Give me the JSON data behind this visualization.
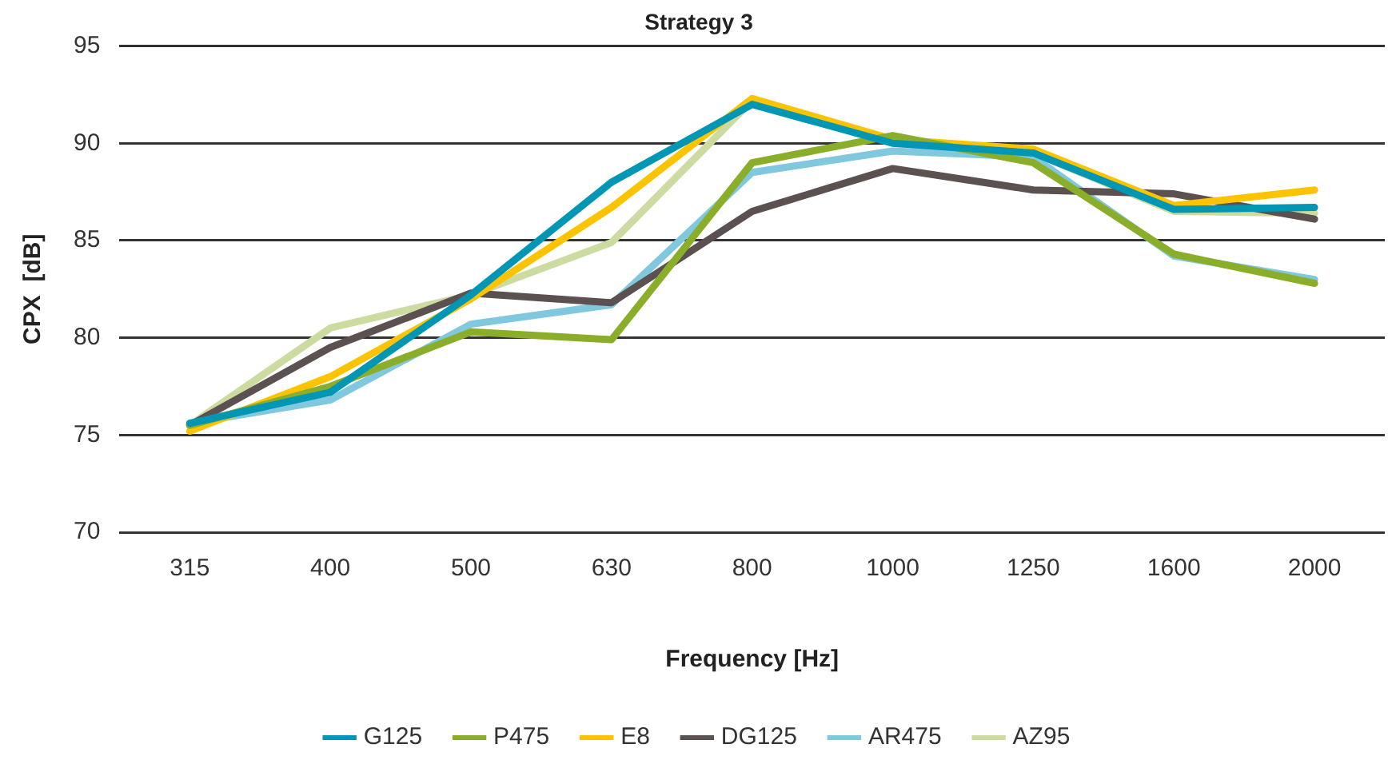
{
  "chart_data": {
    "type": "line",
    "title": "Strategy 3",
    "xlabel": "Frequency [Hz]",
    "ylabel": "CPX  [dB]",
    "categories": [
      "315",
      "400",
      "500",
      "630",
      "800",
      "1000",
      "1250",
      "1600",
      "2000"
    ],
    "ylim": [
      70,
      95
    ],
    "yticks": [
      70,
      75,
      80,
      85,
      90,
      95
    ],
    "grid": "y",
    "legend": "bottom",
    "marker": "none",
    "line_style": "solid",
    "series": [
      {
        "name": "G125",
        "color": "#0096b4",
        "values": [
          75.6,
          77.2,
          82.2,
          88,
          92,
          90,
          89.5,
          86.6,
          86.7
        ]
      },
      {
        "name": "P475",
        "color": "#8aae2a",
        "values": [
          75.5,
          77.5,
          80.3,
          79.9,
          89,
          90.4,
          89,
          84.3,
          82.8
        ]
      },
      {
        "name": "E8",
        "color": "#fcc400",
        "values": [
          75.2,
          78,
          82,
          86.7,
          92.3,
          90.2,
          89.7,
          86.8,
          87.6
        ]
      },
      {
        "name": "DG125",
        "color": "#5b5150",
        "values": [
          75.5,
          79.5,
          82.3,
          81.8,
          86.5,
          88.7,
          87.6,
          87.4,
          86.1
        ]
      },
      {
        "name": "AR475",
        "color": "#80c8de",
        "values": [
          75.6,
          76.8,
          80.7,
          81.7,
          88.5,
          89.6,
          89.3,
          84.2,
          83
        ]
      },
      {
        "name": "AZ95",
        "color": "#ccdca0",
        "values": [
          75.5,
          80.5,
          82.2,
          84.9,
          92.2,
          90,
          89.5,
          86.5,
          86.4
        ]
      }
    ]
  }
}
